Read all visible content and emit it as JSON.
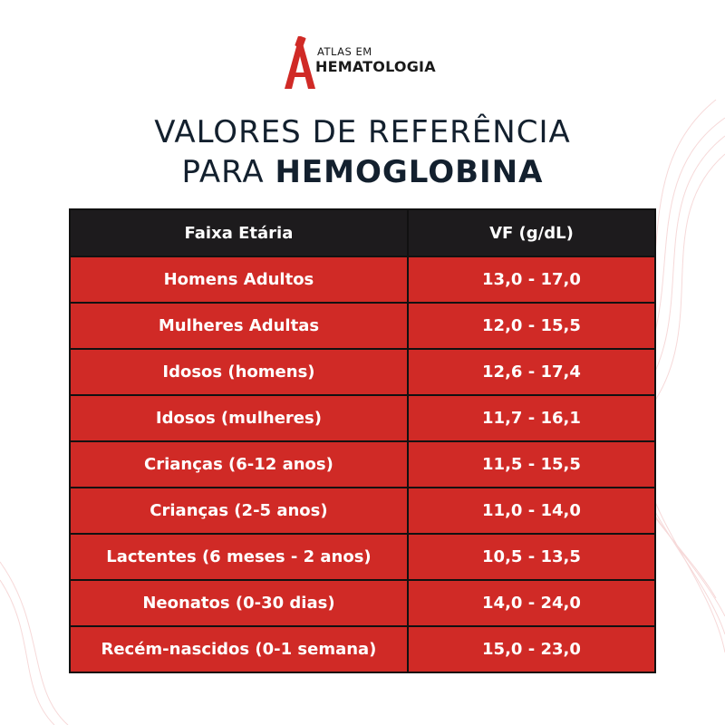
{
  "brand": {
    "line1": "ATLAS EM",
    "line2": "HEMATOLOGIA",
    "logo_icon": "microscope-icon",
    "accent": "#d02a26"
  },
  "title": {
    "line1": "VALORES DE REFERÊNCIA",
    "line2_prefix": "PARA ",
    "line2_bold": "HEMOGLOBINA"
  },
  "table": {
    "headers": [
      "Faixa Etária",
      "VF (g/dL)"
    ],
    "rows": [
      {
        "group": "Homens Adultos",
        "value": "13,0 - 17,0"
      },
      {
        "group": "Mulheres Adultas",
        "value": "12,0 - 15,5"
      },
      {
        "group": "Idosos (homens)",
        "value": "12,6 - 17,4"
      },
      {
        "group": "Idosos (mulheres)",
        "value": "11,7 - 16,1"
      },
      {
        "group": "Crianças (6-12 anos)",
        "value": "11,5 - 15,5"
      },
      {
        "group": "Crianças (2-5 anos)",
        "value": "11,0 - 14,0"
      },
      {
        "group": "Lactentes (6 meses - 2 anos)",
        "value": "10,5 - 13,5"
      },
      {
        "group": "Neonatos (0-30 dias)",
        "value": "14,0 - 24,0"
      },
      {
        "group": "Recém-nascidos (0-1 semana)",
        "value": "15,0 - 23,0"
      }
    ]
  },
  "colors": {
    "header_bg": "#1d1b1d",
    "row_bg": "#d02a26",
    "title_text": "#13202e"
  }
}
